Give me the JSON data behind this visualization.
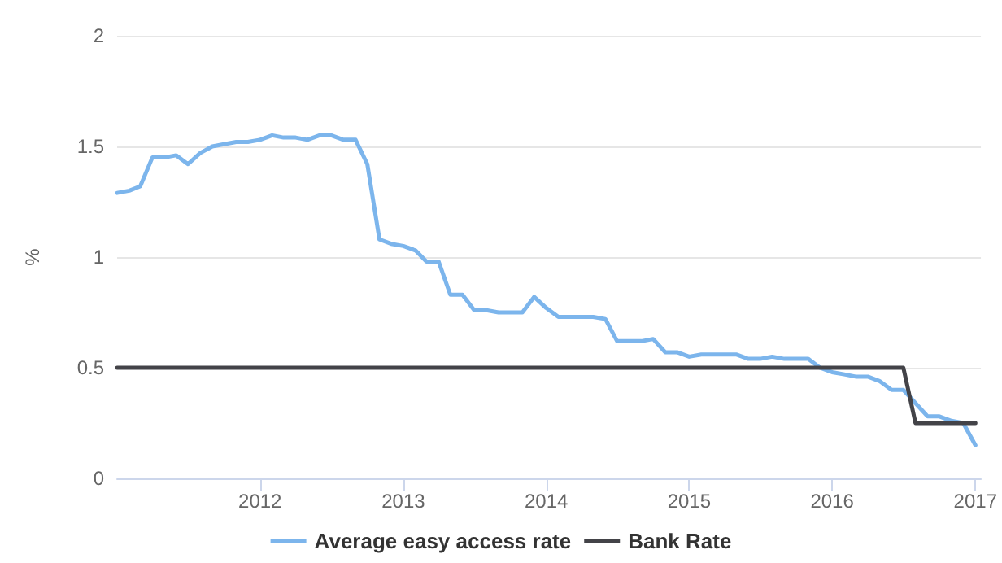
{
  "chart_data": {
    "type": "line",
    "ylabel": "%",
    "x": [
      "2011-01",
      "2011-02",
      "2011-03",
      "2011-04",
      "2011-05",
      "2011-06",
      "2011-07",
      "2011-08",
      "2011-09",
      "2011-10",
      "2011-11",
      "2011-12",
      "2012-01",
      "2012-02",
      "2012-03",
      "2012-04",
      "2012-05",
      "2012-06",
      "2012-07",
      "2012-08",
      "2012-09",
      "2012-10",
      "2012-11",
      "2012-12",
      "2013-01",
      "2013-02",
      "2013-03",
      "2013-04",
      "2013-05",
      "2013-06",
      "2013-07",
      "2013-08",
      "2013-09",
      "2013-10",
      "2013-11",
      "2013-12",
      "2014-01",
      "2014-02",
      "2014-03",
      "2014-04",
      "2014-05",
      "2014-06",
      "2014-07",
      "2014-08",
      "2014-09",
      "2014-10",
      "2014-11",
      "2014-12",
      "2015-01",
      "2015-02",
      "2015-03",
      "2015-04",
      "2015-05",
      "2015-06",
      "2015-07",
      "2015-08",
      "2015-09",
      "2015-10",
      "2015-11",
      "2015-12",
      "2016-01",
      "2016-02",
      "2016-03",
      "2016-04",
      "2016-05",
      "2016-06",
      "2016-07",
      "2016-08",
      "2016-09",
      "2016-10",
      "2016-11",
      "2016-12",
      "2017-01"
    ],
    "series": [
      {
        "name": "Average easy access rate",
        "color": "#7cb5ec",
        "values": [
          1.29,
          1.3,
          1.32,
          1.45,
          1.45,
          1.46,
          1.42,
          1.47,
          1.5,
          1.51,
          1.52,
          1.52,
          1.53,
          1.55,
          1.54,
          1.54,
          1.53,
          1.55,
          1.55,
          1.53,
          1.53,
          1.42,
          1.08,
          1.06,
          1.05,
          1.03,
          0.98,
          0.98,
          0.83,
          0.83,
          0.76,
          0.76,
          0.75,
          0.75,
          0.75,
          0.82,
          0.77,
          0.73,
          0.73,
          0.73,
          0.73,
          0.72,
          0.62,
          0.62,
          0.62,
          0.63,
          0.57,
          0.57,
          0.55,
          0.56,
          0.56,
          0.56,
          0.56,
          0.54,
          0.54,
          0.55,
          0.54,
          0.54,
          0.54,
          0.5,
          0.48,
          0.47,
          0.46,
          0.46,
          0.44,
          0.4,
          0.4,
          0.34,
          0.28,
          0.28,
          0.26,
          0.25,
          0.15
        ]
      },
      {
        "name": "Bank Rate",
        "color": "#434348",
        "x": [
          "2011-01",
          "2016-07",
          "2016-08",
          "2017-01"
        ],
        "values": [
          0.5,
          0.5,
          0.25,
          0.25
        ]
      }
    ],
    "xlim": [
      "2011-01",
      "2017-01-15"
    ],
    "xticks": [
      "2012",
      "2013",
      "2014",
      "2015",
      "2016",
      "2017"
    ],
    "ylim": [
      0,
      2
    ],
    "yticks": [
      0,
      0.5,
      1,
      1.5,
      2
    ],
    "grid": "y",
    "legend": "bottom",
    "marker": "none",
    "line_style": "solid"
  }
}
